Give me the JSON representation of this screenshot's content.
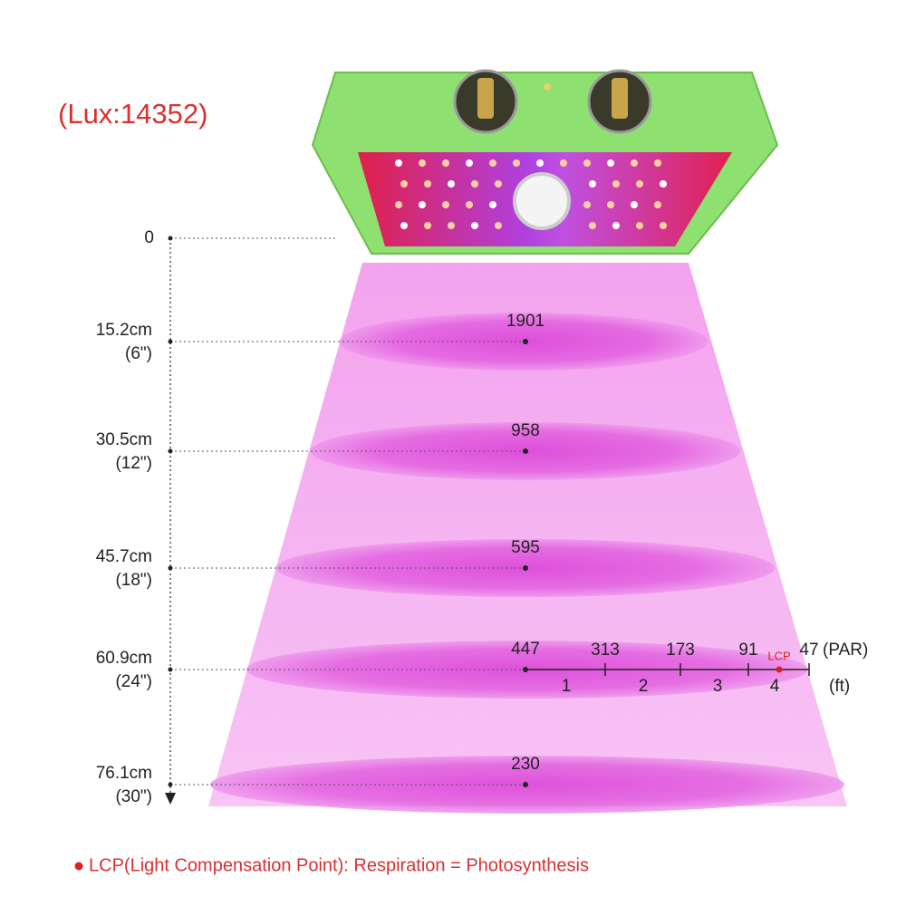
{
  "title": "(Lux:14352)",
  "levels": [
    {
      "height": "0"
    },
    {
      "height": "15.2cm",
      "inches": "(6\")",
      "par": 1901
    },
    {
      "height": "30.5cm",
      "inches": "(12\")",
      "par": 958
    },
    {
      "height": "45.7cm",
      "inches": "(18\")",
      "par": 595
    },
    {
      "height": "60.9cm",
      "inches": "(24\")",
      "par": 447
    },
    {
      "height": "76.1cm",
      "inches": "(30\")",
      "par": 230
    }
  ],
  "spread": {
    "par": [
      313,
      173,
      91,
      47
    ],
    "par_unit": "(PAR)",
    "feet": [
      1,
      2,
      3,
      4
    ],
    "feet_unit": "(ft)",
    "lcp": "LCP"
  },
  "legend": "LCP(Light Compensation Point): Respiration = Photosynthesis"
}
